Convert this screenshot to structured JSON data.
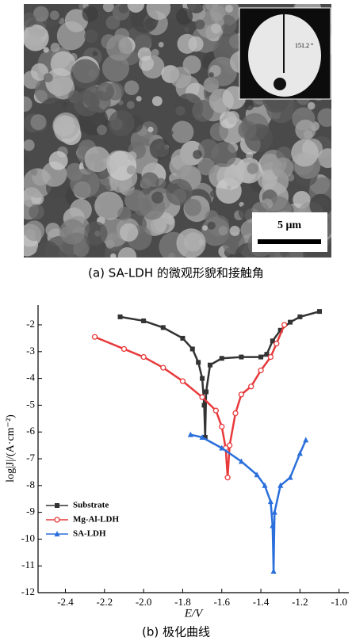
{
  "figure_a": {
    "inset_angle": "151.2 °",
    "scale_bar": "5 μm",
    "caption": "(a) SA-LDH 的微观形貌和接触角"
  },
  "chart_data": {
    "type": "line",
    "x_label": "E/V",
    "y_label": "log|J|/(A·cm⁻²)",
    "xlim": [
      -2.54,
      -0.95
    ],
    "ylim": [
      -12,
      -1.26
    ],
    "xticks": [
      -2.4,
      -2.2,
      {
        "value": -2.0,
        "label": "-2.0"
      },
      -1.8,
      -1.6,
      -1.4,
      -1.2,
      {
        "value": -1.0,
        "label": "-1.0"
      }
    ],
    "yticks": [
      -12,
      -11,
      -10,
      -9,
      -8,
      -7,
      -6,
      -5,
      -4,
      -3,
      -2
    ],
    "legend": "lower left",
    "series": [
      {
        "name": "Substrate",
        "color": "#333333",
        "marker": "square",
        "x": [
          -2.12,
          -2.0,
          -1.9,
          -1.8,
          -1.75,
          -1.72,
          -1.7,
          -1.69,
          -1.685,
          -1.68,
          -1.66,
          -1.6,
          -1.5,
          -1.4,
          -1.37,
          -1.34,
          -1.3,
          -1.25,
          -1.2,
          -1.1
        ],
        "values": [
          -1.7,
          -1.85,
          -2.1,
          -2.5,
          -2.9,
          -3.4,
          -4.0,
          -5.0,
          -6.2,
          -4.5,
          -3.5,
          -3.25,
          -3.2,
          -3.2,
          -3.1,
          -2.6,
          -2.2,
          -1.9,
          -1.7,
          -1.5
        ]
      },
      {
        "name": "Mg-Al-LDH",
        "color": "#e8393b",
        "marker": "circle",
        "x": [
          -2.25,
          -2.1,
          -2.0,
          -1.9,
          -1.8,
          -1.7,
          -1.63,
          -1.6,
          -1.58,
          -1.57,
          -1.56,
          -1.53,
          -1.5,
          -1.45,
          -1.4,
          -1.35,
          -1.32,
          -1.28
        ],
        "values": [
          -2.45,
          -2.9,
          -3.2,
          -3.6,
          -4.1,
          -4.7,
          -5.2,
          -5.8,
          -6.6,
          -7.7,
          -6.5,
          -5.3,
          -4.6,
          -4.3,
          -3.7,
          -3.2,
          -2.7,
          -2.0
        ]
      },
      {
        "name": "SA-LDH",
        "color": "#2a6fdb",
        "marker": "triangle",
        "x": [
          -1.76,
          -1.7,
          -1.6,
          -1.5,
          -1.42,
          -1.38,
          -1.35,
          -1.34,
          -1.335,
          -1.33,
          -1.3,
          -1.25,
          -1.2,
          -1.17
        ],
        "values": [
          -6.1,
          -6.2,
          -6.6,
          -7.1,
          -7.6,
          -8.0,
          -8.6,
          -9.5,
          -11.2,
          -9.0,
          -8.0,
          -7.7,
          -6.8,
          -6.3
        ]
      }
    ]
  },
  "caption_b": "(b)  极化曲线"
}
